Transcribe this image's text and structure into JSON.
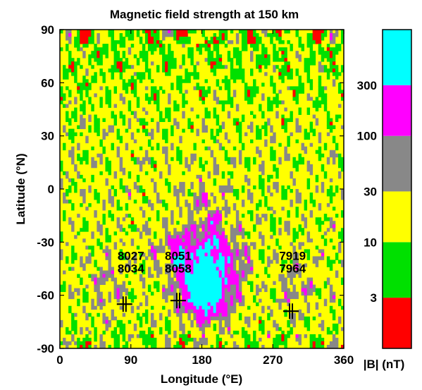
{
  "chart_data": {
    "type": "heatmap",
    "title": "Magnetic field strength at 150 km",
    "xlabel": "Longitude (°E)",
    "ylabel": "Latitude (°N)",
    "xlim": [
      0,
      360
    ],
    "ylim": [
      -90,
      90
    ],
    "x_ticks": [
      "0",
      "90",
      "180",
      "270",
      "360"
    ],
    "y_ticks": [
      "90",
      "60",
      "30",
      "0",
      "-30",
      "-60",
      "-90"
    ],
    "colorbar": {
      "label": "|B| (nT)",
      "scale": "log",
      "tick_labels": [
        "3",
        "10",
        "30",
        "100",
        "300"
      ],
      "bins": [
        {
          "color": "#ff0000",
          "lower": 1,
          "upper": 3
        },
        {
          "color": "#00e000",
          "lower": 3,
          "upper": 10
        },
        {
          "color": "#ffff00",
          "lower": 10,
          "upper": 30
        },
        {
          "color": "#888888",
          "lower": 30,
          "upper": 100
        },
        {
          "color": "#ff00ff",
          "lower": 100,
          "upper": 300
        },
        {
          "color": "#00ffff",
          "lower": 300,
          "upper": 1000
        }
      ]
    },
    "site_markers": [
      {
        "lon": 82,
        "lat": -65
      },
      {
        "lon": 150,
        "lat": -63
      },
      {
        "lon": 293,
        "lat": -69
      }
    ],
    "annotations": [
      {
        "lines": [
          "8027",
          "8034"
        ],
        "lon": 90,
        "lat": -40
      },
      {
        "lines": [
          "8051",
          "8058"
        ],
        "lon": 150,
        "lat": -40
      },
      {
        "lines": [
          "7919",
          "7964"
        ],
        "lon": 295,
        "lat": -40
      }
    ]
  }
}
